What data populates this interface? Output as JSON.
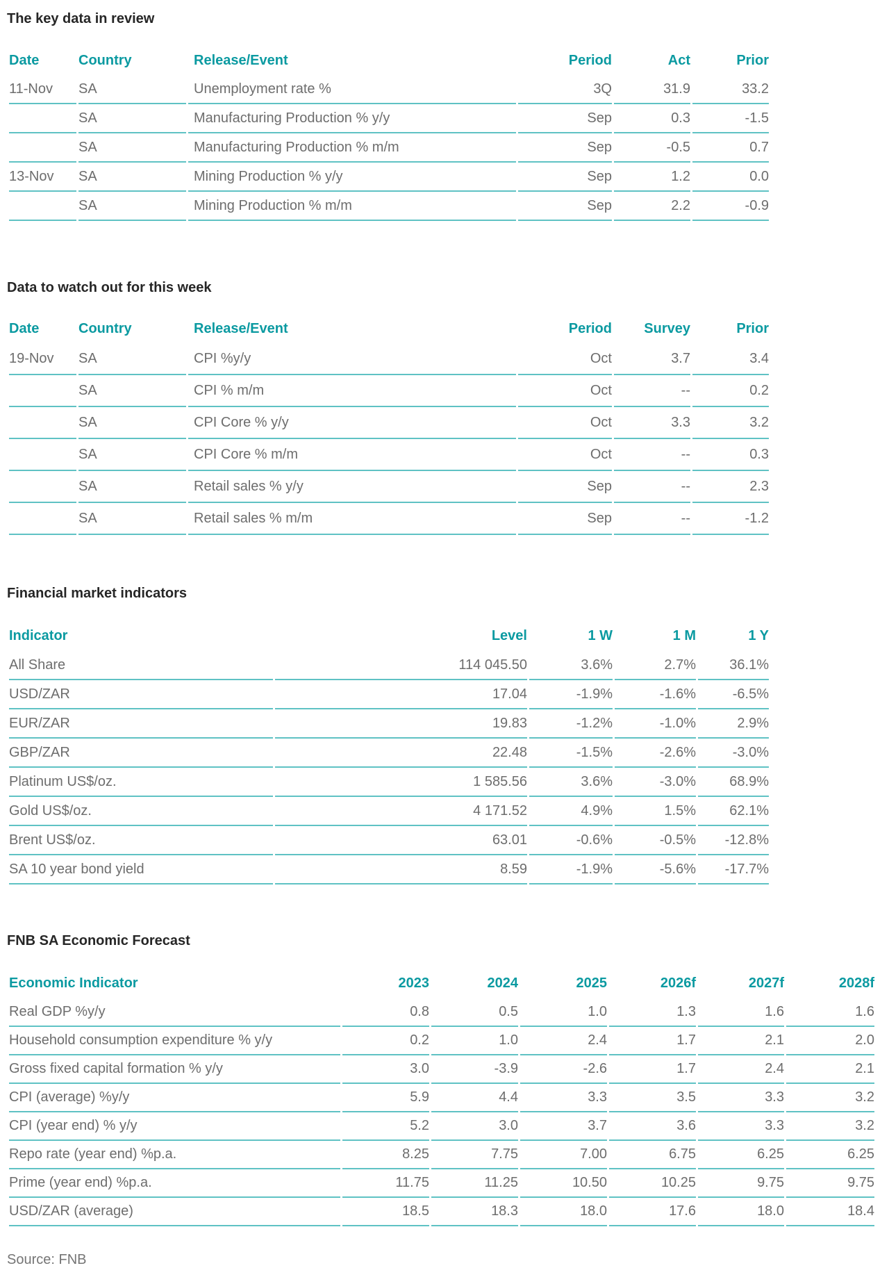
{
  "colors": {
    "accent_teal": "#0b9aa1",
    "border_teal": "#5fc2c4",
    "body_text_gray": "#6d6d6d",
    "title_black": "#262626",
    "source_gray": "#757575"
  },
  "source_note": "Source: FNB",
  "tables": [
    {
      "title": "The key data in review",
      "headers": [
        "Date",
        "Country",
        "Release/Event",
        "Period",
        "Act",
        "Prior"
      ],
      "rows": [
        [
          "11-Nov",
          "SA",
          "Unemployment rate %",
          "3Q",
          "31.9",
          "33.2"
        ],
        [
          "",
          "SA",
          "Manufacturing Production % y/y",
          "Sep",
          "0.3",
          "-1.5"
        ],
        [
          "",
          "SA",
          "Manufacturing Production % m/m",
          "Sep",
          "-0.5",
          "0.7"
        ],
        [
          "13-Nov",
          "SA",
          "Mining Production % y/y",
          "Sep",
          "1.2",
          "0.0"
        ],
        [
          "",
          "SA",
          "Mining Production % m/m",
          "Sep",
          "2.2",
          "-0.9"
        ]
      ]
    },
    {
      "title": "Data to watch out for this week",
      "headers": [
        "Date",
        "Country",
        "Release/Event",
        "Period",
        "Survey",
        "Prior"
      ],
      "rows": [
        [
          "19-Nov",
          "SA",
          "CPI %y/y",
          "Oct",
          "3.7",
          "3.4"
        ],
        [
          "",
          "SA",
          "CPI % m/m",
          "Oct",
          "--",
          "0.2"
        ],
        [
          "",
          "SA",
          "CPI Core % y/y",
          "Oct",
          "3.3",
          "3.2"
        ],
        [
          "",
          "SA",
          "CPI Core % m/m",
          "Oct",
          "--",
          "0.3"
        ],
        [
          "",
          "SA",
          "Retail sales % y/y",
          "Sep",
          "--",
          "2.3"
        ],
        [
          "",
          "SA",
          "Retail sales % m/m",
          "Sep",
          "--",
          "-1.2"
        ]
      ]
    },
    {
      "title": "Financial market indicators",
      "headers": [
        "Indicator",
        "Level",
        "1 W",
        "1 M",
        "1 Y"
      ],
      "rows": [
        [
          "All Share",
          "114 045.50",
          "3.6%",
          "2.7%",
          "36.1%"
        ],
        [
          "USD/ZAR",
          "17.04",
          "-1.9%",
          "-1.6%",
          "-6.5%"
        ],
        [
          "EUR/ZAR",
          "19.83",
          "-1.2%",
          "-1.0%",
          "2.9%"
        ],
        [
          "GBP/ZAR",
          "22.48",
          "-1.5%",
          "-2.6%",
          "-3.0%"
        ],
        [
          "Platinum US$/oz.",
          "1 585.56",
          "3.6%",
          "-3.0%",
          "68.9%"
        ],
        [
          "Gold US$/oz.",
          "4 171.52",
          "4.9%",
          "1.5%",
          "62.1%"
        ],
        [
          "Brent US$/oz.",
          "63.01",
          "-0.6%",
          "-0.5%",
          "-12.8%"
        ],
        [
          "SA 10 year bond yield",
          "8.59",
          "-1.9%",
          "-5.6%",
          "-17.7%"
        ]
      ]
    },
    {
      "title": "FNB SA Economic Forecast",
      "headers": [
        "Economic Indicator",
        "2023",
        "2024",
        "2025",
        "2026f",
        "2027f",
        "2028f"
      ],
      "rows": [
        [
          "Real GDP %y/y",
          "0.8",
          "0.5",
          "1.0",
          "1.3",
          "1.6",
          "1.6"
        ],
        [
          "Household consumption expenditure % y/y",
          "0.2",
          "1.0",
          "2.4",
          "1.7",
          "2.1",
          "2.0"
        ],
        [
          "Gross fixed capital formation % y/y",
          "3.0",
          "-3.9",
          "-2.6",
          "1.7",
          "2.4",
          "2.1"
        ],
        [
          "CPI (average) %y/y",
          "5.9",
          "4.4",
          "3.3",
          "3.5",
          "3.3",
          "3.2"
        ],
        [
          "CPI (year end) % y/y",
          "5.2",
          "3.0",
          "3.7",
          "3.6",
          "3.3",
          "3.2"
        ],
        [
          "Repo rate (year end) %p.a.",
          "8.25",
          "7.75",
          "7.00",
          "6.75",
          "6.25",
          "6.25"
        ],
        [
          "Prime (year end) %p.a.",
          "11.75",
          "11.25",
          "10.50",
          "10.25",
          "9.75",
          "9.75"
        ],
        [
          "USD/ZAR (average)",
          "18.5",
          "18.3",
          "18.0",
          "17.6",
          "18.0",
          "18.4"
        ]
      ]
    }
  ]
}
